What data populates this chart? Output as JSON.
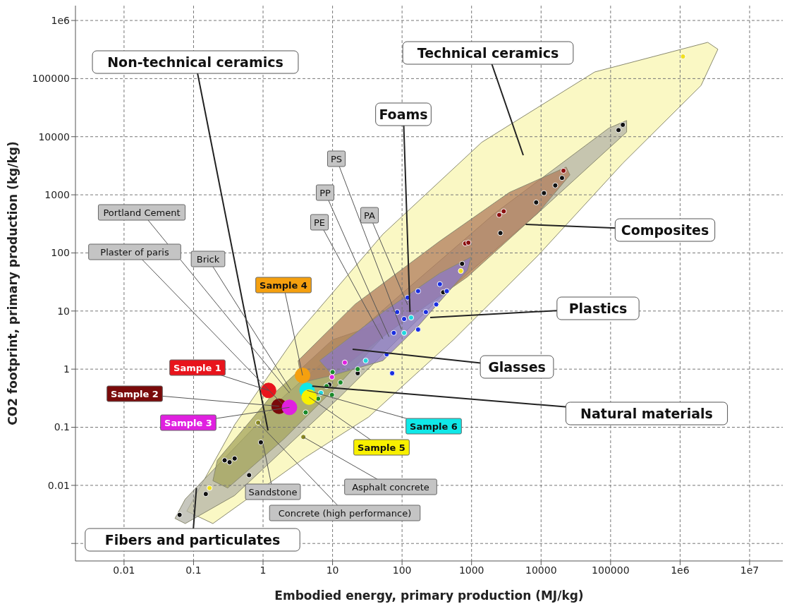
{
  "chart_data": {
    "type": "scatter",
    "xlabel": "Embodied energy, primary production (MJ/kg)",
    "ylabel": "CO2 footprint, primary production (kg/kg)",
    "log": "xy",
    "grid": true,
    "xlim": [
      0.002,
      30000000
    ],
    "ylim": [
      0.0005,
      1800000
    ],
    "xticks": [
      0.01,
      0.1,
      1,
      10,
      100,
      1000,
      10000,
      100000,
      {
        "value": 1000000,
        "label": "1e6"
      },
      {
        "value": 10000000,
        "label": "1e7"
      }
    ],
    "yticks": [
      {
        "value": 0.001,
        "label": null
      },
      0.01,
      0.1,
      1,
      10,
      100,
      1000,
      10000,
      100000,
      {
        "value": 1000000,
        "label": "1e6"
      }
    ],
    "series": [
      {
        "type": "area",
        "color": "#f8f6b0",
        "x": [
          0.08,
          0.39,
          3.2,
          53,
          1400,
          59000,
          2500000,
          3500000,
          2000000,
          150000,
          9100,
          550,
          33,
          4.0,
          0.19
        ],
        "values": [
          0.0036,
          0.11,
          4.2,
          210,
          8000,
          130000,
          420000,
          320000,
          76000,
          3500,
          91,
          3.2,
          0.15,
          0.03,
          0.0022
        ]
      },
      {
        "type": "area",
        "color": "#b4b4a8",
        "x": [
          0.054,
          0.076,
          2.0,
          85,
          2200,
          94000,
          170000,
          170000,
          9100,
          350,
          13,
          0.39,
          0.076
        ],
        "values": [
          0.0027,
          0.0058,
          0.34,
          17,
          490,
          14000,
          19000,
          12000,
          490,
          17,
          0.34,
          0.0067,
          0.0022
        ]
      },
      {
        "type": "area",
        "color": "#a4a45c",
        "x": [
          0.22,
          1.3,
          10,
          53,
          60,
          13,
          2.0,
          0.31,
          0.19
        ],
        "values": [
          0.027,
          0.34,
          3.2,
          6.3,
          4.2,
          0.59,
          0.063,
          0.009,
          0.012
        ]
      },
      {
        "type": "area",
        "color": "#b07c5c",
        "x": [
          3.2,
          21,
          350,
          3500,
          23000,
          26000,
          9100,
          880,
          85,
          10,
          3.6
        ],
        "values": [
          1.4,
          13,
          160,
          1100,
          3000,
          2200,
          490,
          39,
          5.5,
          0.78,
          0.59
        ]
      },
      {
        "type": "area",
        "color": "#8a78c8",
        "x": [
          6.5,
          53,
          350,
          980,
          880,
          170,
          53,
          10
        ],
        "values": [
          1.4,
          9.6,
          45,
          85,
          51,
          5.5,
          1.4,
          0.78
        ]
      },
      {
        "marker": "circle",
        "color": "#111111",
        "x": [
          0.063,
          0.15,
          0.63,
          0.28,
          0.33,
          0.39,
          0.93,
          9.0,
          23,
          390,
          730,
          2600,
          8500,
          11000,
          16000,
          20000,
          130000,
          150000
        ],
        "values": [
          0.0031,
          0.0071,
          0.015,
          0.027,
          0.025,
          0.029,
          0.055,
          0.54,
          0.85,
          21,
          65,
          220,
          740,
          1070,
          1450,
          1950,
          13000,
          16000
        ]
      },
      {
        "marker": "circle",
        "color": "#8b1010",
        "x": [
          2500,
          2900,
          21000,
          810,
          900
        ],
        "values": [
          450,
          520,
          2600,
          145,
          150
        ]
      },
      {
        "marker": "circle",
        "color": "#f0e020",
        "x": [
          1100000,
          700,
          0.17
        ],
        "values": [
          240000,
          49,
          0.009
        ]
      },
      {
        "marker": "circle",
        "color": "#1a2ee0",
        "x": [
          85,
          120,
          170,
          107,
          76,
          170,
          220,
          60,
          350,
          440,
          310,
          72
        ],
        "values": [
          9.6,
          17,
          22,
          7.3,
          4.2,
          4.8,
          9.6,
          1.8,
          29,
          22,
          13,
          0.85
        ]
      },
      {
        "marker": "circle",
        "color": "#1a8a2a",
        "x": [
          8.2,
          10,
          13,
          4.1,
          6.2,
          23,
          9.8
        ],
        "values": [
          0.51,
          0.89,
          0.59,
          0.18,
          0.31,
          1.0,
          0.36
        ]
      },
      {
        "marker": "circle",
        "color": "#20d8e0",
        "x": [
          6.8,
          30,
          107,
          135
        ],
        "values": [
          0.39,
          1.4,
          4.2,
          7.7
        ]
      },
      {
        "marker": "circle",
        "color": "#e020e0",
        "x": [
          9.8,
          15
        ],
        "values": [
          0.73,
          1.3
        ]
      },
      {
        "marker": "circle",
        "color": "#8a8a20",
        "x": [
          0.85,
          3.8
        ],
        "values": [
          0.12,
          0.068
        ]
      },
      {
        "type": "scatter",
        "marker": "circle",
        "x": [
          1.2,
          1.7,
          2.4,
          3.7,
          4.3,
          4.6
        ],
        "values": [
          0.43,
          0.23,
          0.22,
          0.78,
          0.43,
          0.33
        ],
        "colors": [
          "#e8141c",
          "#7a0a0a",
          "#e020e0",
          "#f5a00f",
          "#10e8e8",
          "#f8f000"
        ]
      }
    ],
    "annotations": [
      "Technical ceramics",
      "Non-technical ceramics",
      {
        "text": "Foams",
        "x": 130,
        "y": 9.6
      },
      {
        "text": "Composites",
        "x": 6000,
        "y": 310
      },
      "Plastics",
      "Glasses",
      {
        "text": "Natural materials",
        "x": 5.1,
        "y": 0.51
      },
      {
        "text": "Fibers and particulates",
        "x": 0.11,
        "y": 0.009
      },
      {
        "text": "PS",
        "x": 98,
        "y": 4.8
      },
      {
        "text": "PP",
        "x": 65,
        "y": 3.6
      },
      {
        "text": "PE",
        "x": 53,
        "y": 3.3
      },
      "PA",
      {
        "text": "Portland Cement",
        "x": 2.4,
        "y": 0.39
      },
      {
        "text": "Plaster of paris",
        "x": 1.9,
        "y": 0.25
      },
      {
        "text": "Brick",
        "x": 2.5,
        "y": 0.44
      },
      {
        "text": "Sandstone",
        "x": 1.0,
        "y": 0.052
      },
      {
        "text": "Concrete (high performance)",
        "x": 0.85,
        "y": 0.12
      },
      {
        "text": "Asphalt concrete",
        "x": 3.8,
        "y": 0.068
      },
      {
        "text": "Sample 1",
        "x": 1.2,
        "y": 0.43
      },
      {
        "text": "Sample 2",
        "x": 1.7,
        "y": 0.23
      },
      {
        "text": "Sample 3",
        "x": 2.4,
        "y": 0.22
      },
      {
        "text": "Sample 4",
        "x": 3.7,
        "y": 0.78
      },
      {
        "text": "Sample 5",
        "x": 4.6,
        "y": 0.33
      },
      {
        "text": "Sample 6",
        "x": 4.3,
        "y": 0.43
      }
    ]
  }
}
